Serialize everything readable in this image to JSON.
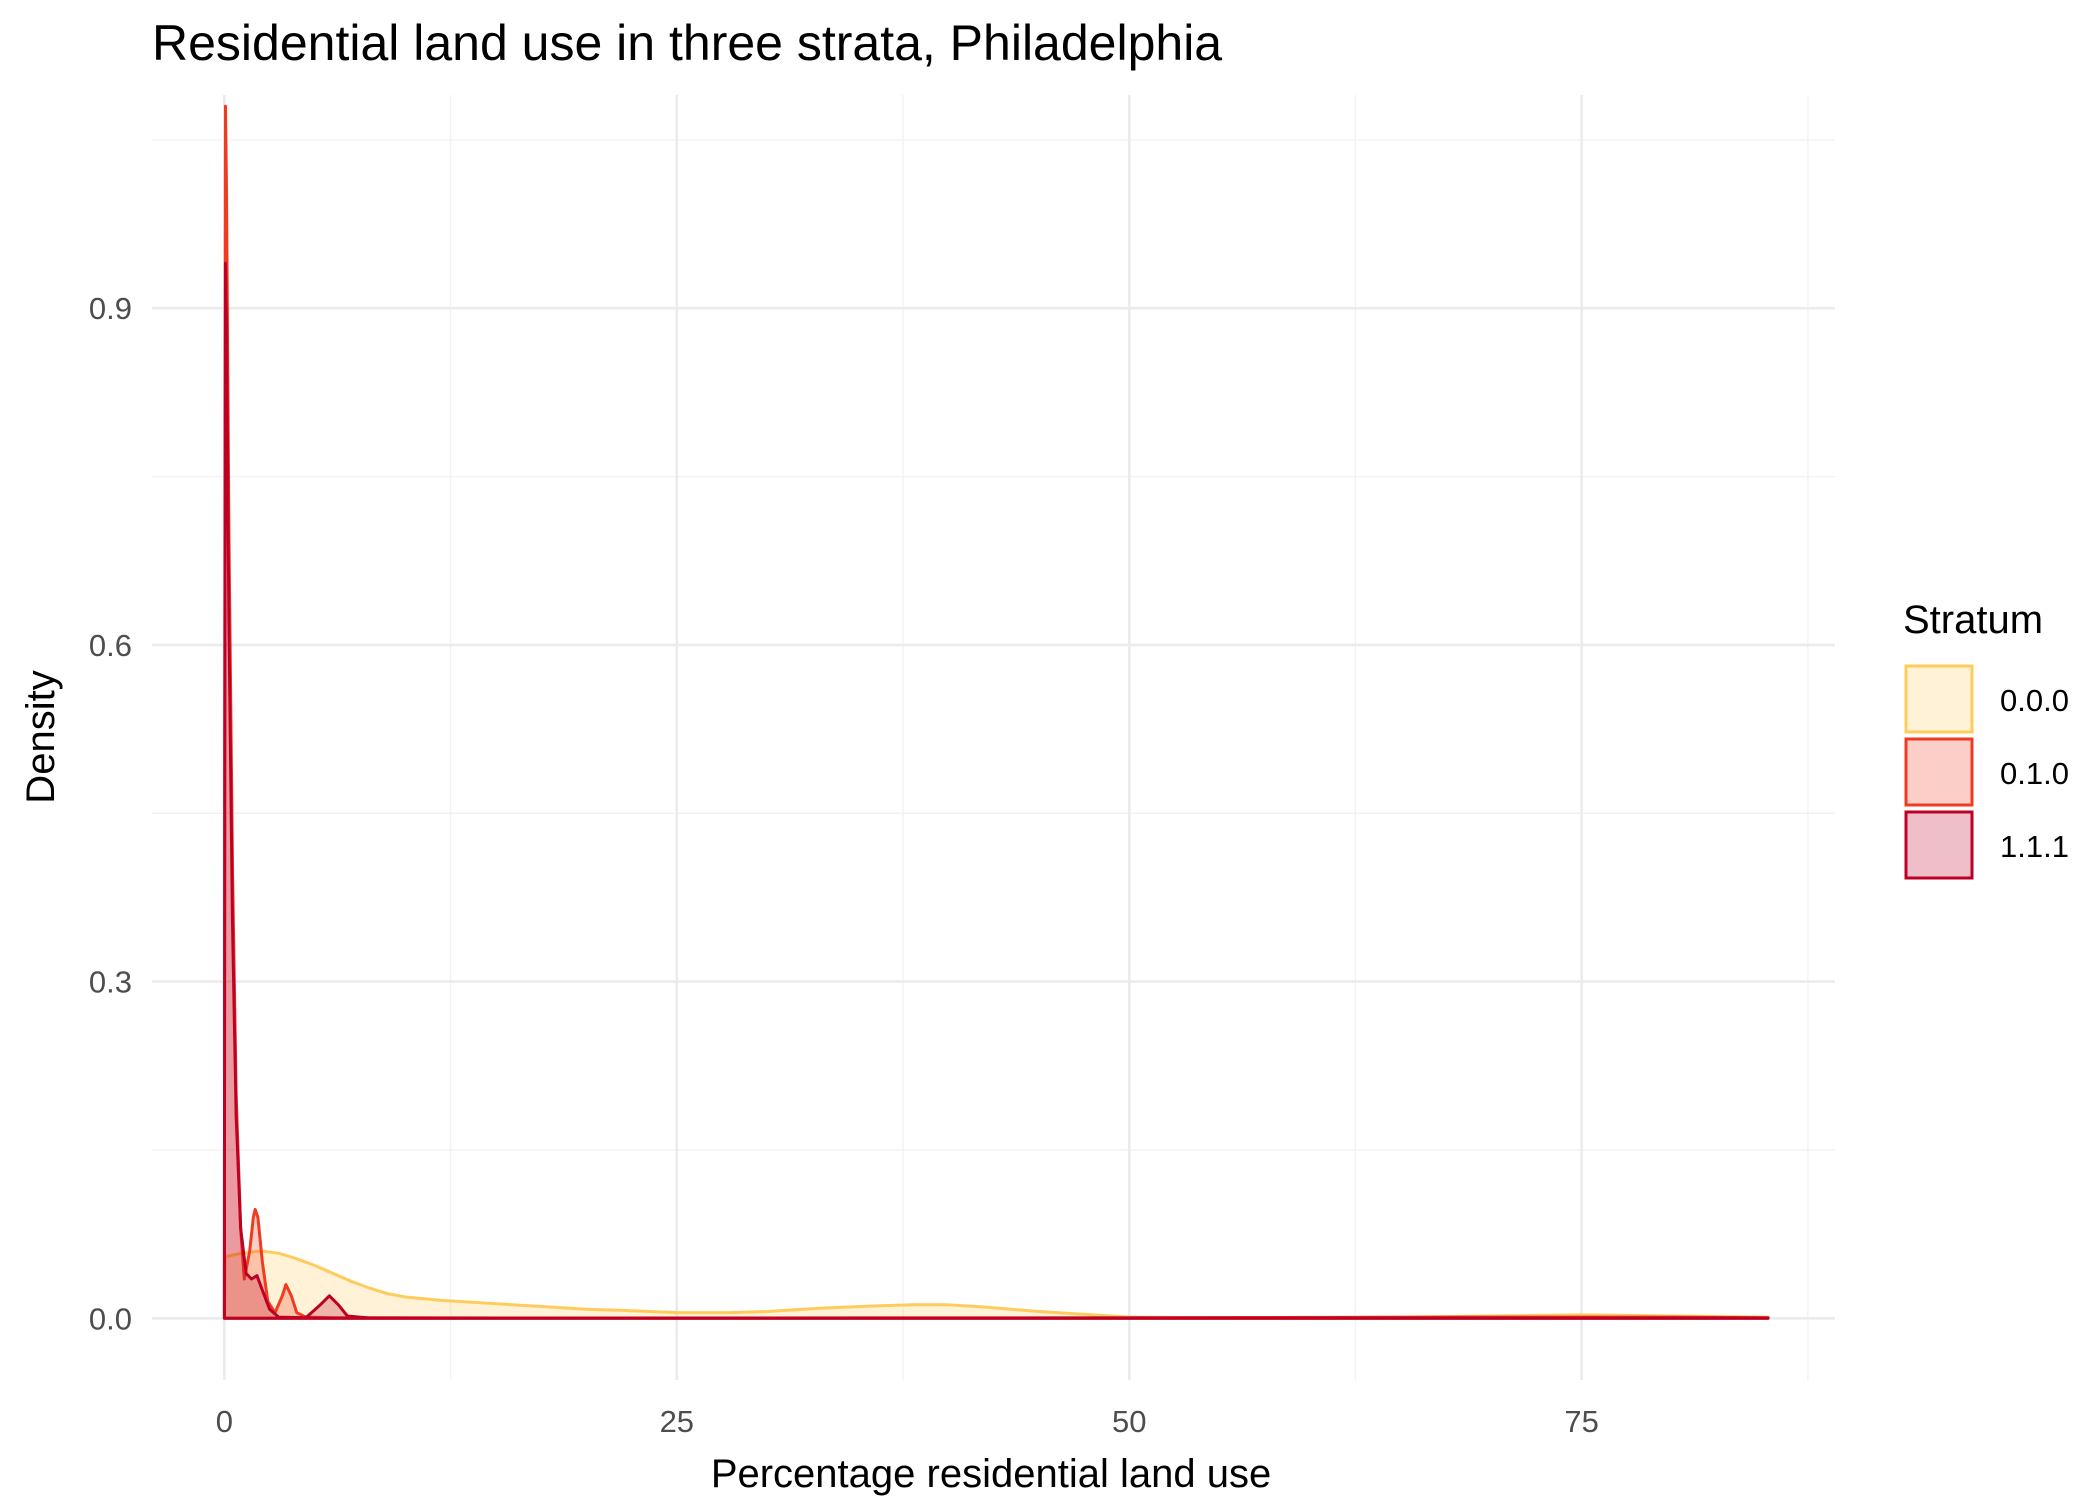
{
  "chart_data": {
    "type": "area",
    "subtype": "density",
    "title": "Residential land use in three strata, Philadelphia",
    "xlabel": "Percentage residential land use",
    "ylabel": "Density",
    "xlim": [
      -4,
      89
    ],
    "ylim": [
      -0.055,
      1.09
    ],
    "x_ticks": [
      0,
      25,
      50,
      75
    ],
    "x_tick_labels": [
      "0",
      "25",
      "50",
      "75"
    ],
    "y_ticks": [
      0.0,
      0.3,
      0.6,
      0.9
    ],
    "y_tick_labels": [
      "0.0",
      "0.3",
      "0.6",
      "0.9"
    ],
    "grid": true,
    "legend": {
      "title": "Stratum",
      "position": "right"
    },
    "series": [
      {
        "name": "0.0.0",
        "line_color": "#FECC5C",
        "fill_color": "#FECC5C",
        "fill_alpha": 0.25,
        "points": [
          [
            0,
            0
          ],
          [
            0.05,
            0.055
          ],
          [
            1,
            0.058
          ],
          [
            2,
            0.06
          ],
          [
            3,
            0.058
          ],
          [
            4,
            0.053
          ],
          [
            5,
            0.047
          ],
          [
            6,
            0.04
          ],
          [
            7,
            0.033
          ],
          [
            8,
            0.027
          ],
          [
            9,
            0.022
          ],
          [
            10,
            0.019
          ],
          [
            12,
            0.016
          ],
          [
            15,
            0.013
          ],
          [
            18,
            0.01
          ],
          [
            20,
            0.008
          ],
          [
            22,
            0.007
          ],
          [
            25,
            0.005
          ],
          [
            28,
            0.005
          ],
          [
            30,
            0.006
          ],
          [
            33,
            0.009
          ],
          [
            36,
            0.011
          ],
          [
            38,
            0.012
          ],
          [
            40,
            0.012
          ],
          [
            42,
            0.01
          ],
          [
            45,
            0.006
          ],
          [
            48,
            0.003
          ],
          [
            50,
            0.001
          ],
          [
            55,
            0.0005
          ],
          [
            60,
            0.0005
          ],
          [
            65,
            0.001
          ],
          [
            70,
            0.002
          ],
          [
            75,
            0.003
          ],
          [
            80,
            0.002
          ],
          [
            85.3,
            0.001
          ],
          [
            85.3,
            0
          ]
        ]
      },
      {
        "name": "0.1.0",
        "line_color": "#F03B20",
        "fill_color": "#F03B20",
        "fill_alpha": 0.25,
        "points": [
          [
            0,
            0
          ],
          [
            0.02,
            0.5
          ],
          [
            0.06,
            1.08
          ],
          [
            0.12,
            1.0
          ],
          [
            0.25,
            0.7
          ],
          [
            0.45,
            0.4
          ],
          [
            0.65,
            0.2
          ],
          [
            0.9,
            0.08
          ],
          [
            1.1,
            0.035
          ],
          [
            1.4,
            0.06
          ],
          [
            1.6,
            0.09
          ],
          [
            1.7,
            0.097
          ],
          [
            1.85,
            0.09
          ],
          [
            2.1,
            0.05
          ],
          [
            2.4,
            0.015
          ],
          [
            2.8,
            0.005
          ],
          [
            3.2,
            0.02
          ],
          [
            3.4,
            0.03
          ],
          [
            3.7,
            0.02
          ],
          [
            4.0,
            0.005
          ],
          [
            4.5,
            0.001
          ],
          [
            6,
            0.0005
          ],
          [
            15,
            0.0003
          ],
          [
            30,
            0.0002
          ],
          [
            50,
            0.0005
          ],
          [
            70,
            0.001
          ],
          [
            80,
            0.001
          ],
          [
            85.3,
            0.0005
          ],
          [
            85.3,
            0
          ]
        ]
      },
      {
        "name": "1.1.1",
        "line_color": "#BD0026",
        "fill_color": "#BD0026",
        "fill_alpha": 0.25,
        "points": [
          [
            0,
            0
          ],
          [
            0.02,
            0.5
          ],
          [
            0.06,
            0.94
          ],
          [
            0.12,
            0.88
          ],
          [
            0.25,
            0.62
          ],
          [
            0.45,
            0.35
          ],
          [
            0.65,
            0.18
          ],
          [
            0.9,
            0.08
          ],
          [
            1.2,
            0.04
          ],
          [
            1.5,
            0.035
          ],
          [
            1.8,
            0.038
          ],
          [
            2.1,
            0.025
          ],
          [
            2.5,
            0.008
          ],
          [
            3,
            0.001
          ],
          [
            4.5,
            0.0005
          ],
          [
            5.3,
            0.012
          ],
          [
            5.8,
            0.02
          ],
          [
            6.3,
            0.012
          ],
          [
            6.8,
            0.002
          ],
          [
            8,
            0.0003
          ],
          [
            20,
            0.0002
          ],
          [
            40,
            0.0002
          ],
          [
            60,
            0.0002
          ],
          [
            85.3,
            0.0002
          ],
          [
            85.3,
            0
          ]
        ]
      }
    ]
  }
}
